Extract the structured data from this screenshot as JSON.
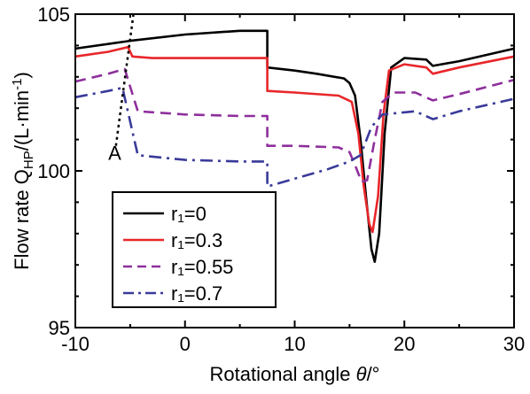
{
  "chart_data": {
    "type": "line",
    "title": "",
    "xlabel_prefix": "Rotational angle ",
    "xlabel_symbol": "θ",
    "xlabel_suffix": "/°",
    "ylabel_prefix": "Flow rate Q",
    "ylabel_sub": "HP",
    "ylabel_suffix": "/(L·min",
    "ylabel_sup": "-1",
    "ylabel_close": ")",
    "xlim": [
      -10,
      30
    ],
    "ylim": [
      95,
      105
    ],
    "xticks": [
      -10,
      0,
      10,
      20,
      30
    ],
    "yticks": [
      95,
      100,
      105
    ],
    "grid": false,
    "legend_position": "bottom-left",
    "series": [
      {
        "name": "r₁=0",
        "color": "#000000",
        "dash": "solid",
        "points": [
          [
            -10,
            103.9
          ],
          [
            -5,
            104.15
          ],
          [
            0,
            104.35
          ],
          [
            5,
            104.47
          ],
          [
            7.5,
            104.47
          ],
          [
            7.5,
            103.3
          ],
          [
            10,
            103.2
          ],
          [
            12,
            103.1
          ],
          [
            14.5,
            102.95
          ],
          [
            15,
            102.8
          ],
          [
            15.5,
            102.4
          ],
          [
            16,
            101.0
          ],
          [
            16.5,
            99.2
          ],
          [
            17,
            97.5
          ],
          [
            17.3,
            97.1
          ],
          [
            17.7,
            98.0
          ],
          [
            18.2,
            101.2
          ],
          [
            18.8,
            103.3
          ],
          [
            20,
            103.6
          ],
          [
            22,
            103.55
          ],
          [
            22.6,
            103.35
          ],
          [
            25,
            103.5
          ],
          [
            30,
            103.9
          ]
        ]
      },
      {
        "name": "r₁=0.3",
        "color": "#e8262a",
        "dash": "solid",
        "points": [
          [
            -10,
            103.65
          ],
          [
            -7,
            103.8
          ],
          [
            -5.2,
            103.95
          ],
          [
            -4.8,
            103.65
          ],
          [
            -3,
            103.6
          ],
          [
            0,
            103.6
          ],
          [
            5,
            103.6
          ],
          [
            7.5,
            103.6
          ],
          [
            7.5,
            102.55
          ],
          [
            10,
            102.5
          ],
          [
            14,
            102.4
          ],
          [
            15.2,
            102.2
          ],
          [
            15.8,
            101.2
          ],
          [
            16.3,
            99.5
          ],
          [
            16.8,
            98.3
          ],
          [
            17.1,
            98.05
          ],
          [
            17.6,
            99.2
          ],
          [
            18.1,
            101.8
          ],
          [
            18.6,
            103.2
          ],
          [
            20,
            103.4
          ],
          [
            22,
            103.3
          ],
          [
            22.6,
            103.1
          ],
          [
            25,
            103.3
          ],
          [
            30,
            103.65
          ]
        ]
      },
      {
        "name": "r₁=0.55",
        "color": "#8e2f9c",
        "dash": "dash",
        "points": [
          [
            -10,
            102.85
          ],
          [
            -7,
            103.1
          ],
          [
            -5.5,
            103.25
          ],
          [
            -4.3,
            101.9
          ],
          [
            0,
            101.8
          ],
          [
            5,
            101.75
          ],
          [
            7.5,
            101.75
          ],
          [
            7.5,
            100.8
          ],
          [
            10,
            100.8
          ],
          [
            14,
            100.75
          ],
          [
            15,
            100.6
          ],
          [
            15.6,
            100.1
          ],
          [
            16.1,
            99.65
          ],
          [
            16.6,
            99.7
          ],
          [
            17.3,
            101.0
          ],
          [
            18,
            102.2
          ],
          [
            19,
            102.5
          ],
          [
            21,
            102.5
          ],
          [
            22.6,
            102.25
          ],
          [
            25,
            102.45
          ],
          [
            30,
            102.9
          ]
        ]
      },
      {
        "name": "r₁=0.7",
        "color": "#3a3a9a",
        "dash": "dashdot",
        "points": [
          [
            -10,
            102.35
          ],
          [
            -7,
            102.55
          ],
          [
            -5.7,
            102.65
          ],
          [
            -4.3,
            100.5
          ],
          [
            0,
            100.35
          ],
          [
            5,
            100.3
          ],
          [
            7.5,
            100.3
          ],
          [
            7.5,
            99.5
          ],
          [
            10,
            99.75
          ],
          [
            13,
            100.05
          ],
          [
            15,
            100.3
          ],
          [
            16,
            100.5
          ],
          [
            17,
            101.4
          ],
          [
            18,
            101.8
          ],
          [
            21,
            101.9
          ],
          [
            22.6,
            101.65
          ],
          [
            25,
            101.9
          ],
          [
            30,
            102.3
          ]
        ]
      }
    ],
    "annotations": [
      {
        "text": "A",
        "line_points": [
          [
            -6.3,
            100.8
          ],
          [
            -4.7,
            105
          ]
        ],
        "label_at": [
          -7.0,
          100.35
        ]
      }
    ]
  }
}
